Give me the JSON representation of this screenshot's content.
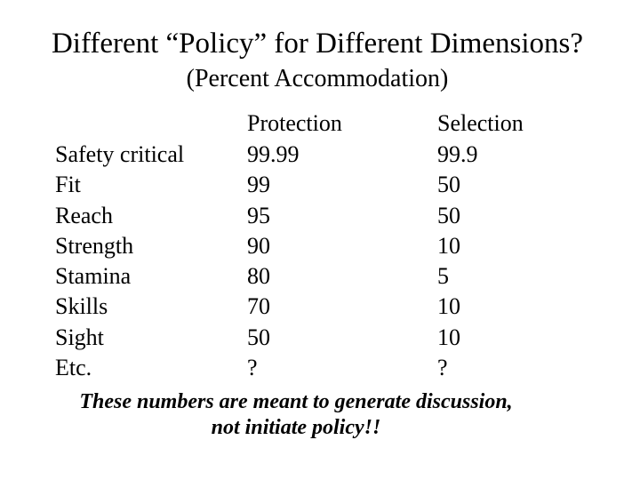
{
  "slide": {
    "title": "Different “Policy” for Different Dimensions?",
    "subtitle": "(Percent Accommodation)",
    "table": {
      "columns": [
        "Protection",
        "Selection"
      ],
      "rows": [
        {
          "label": "Safety critical",
          "protection": "99.99",
          "selection": "99.9"
        },
        {
          "label": "Fit",
          "protection": "99",
          "selection": "50"
        },
        {
          "label": "Reach",
          "protection": "95",
          "selection": "50"
        },
        {
          "label": "Strength",
          "protection": "90",
          "selection": "10"
        },
        {
          "label": "Stamina",
          "protection": "80",
          "selection": "5"
        },
        {
          "label": "Skills",
          "protection": "70",
          "selection": "10"
        },
        {
          "label": "Sight",
          "protection": "50",
          "selection": "10"
        },
        {
          "label": "Etc.",
          "protection": "?",
          "selection": "?"
        }
      ]
    },
    "footer": {
      "line1": "These numbers are meant to generate discussion,",
      "line2": "not initiate policy!!"
    },
    "colors": {
      "background": "#ffffff",
      "text": "#000000"
    }
  }
}
